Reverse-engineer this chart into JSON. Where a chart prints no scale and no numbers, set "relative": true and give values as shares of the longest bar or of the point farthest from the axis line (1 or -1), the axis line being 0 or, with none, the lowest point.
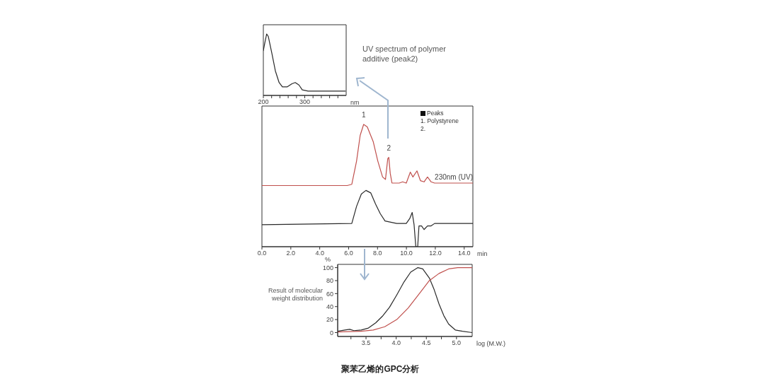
{
  "chart_data": [
    {
      "type": "line",
      "relative": true,
      "xlabel": "nm",
      "xlim": [
        200,
        400
      ],
      "xticks": [
        200,
        {
          "value": 220,
          "label": null
        },
        {
          "value": 240,
          "label": null
        },
        {
          "value": 260,
          "label": null
        },
        {
          "value": 280,
          "label": null
        },
        300,
        {
          "value": 320,
          "label": null
        },
        {
          "value": 340,
          "label": null
        },
        {
          "value": 360,
          "label": null
        },
        {
          "value": 380,
          "label": null
        }
      ],
      "marker": "none",
      "line_style": "solid",
      "annotations": [
        "UV spectrum of polymer additive (peak2)"
      ],
      "series": [
        {
          "color": "#2a2a2a",
          "x": [
            200,
            204,
            208,
            212,
            221,
            229,
            238,
            246,
            258,
            269,
            277,
            286,
            294,
            308,
            398
          ],
          "values": [
            0.73,
            0.87,
            1,
            0.96,
            0.67,
            0.4,
            0.21,
            0.14,
            0.14,
            0.19,
            0.21,
            0.17,
            0.09,
            0.07,
            0.07
          ]
        }
      ]
    },
    {
      "type": "line",
      "relative": true,
      "title": "聚苯乙烯的GPC分析",
      "xlabel": "min",
      "xlim": [
        0,
        14.6
      ],
      "xticks": [
        {
          "value": 0,
          "label": "0.0"
        },
        {
          "value": 2,
          "label": "2.0"
        },
        {
          "value": 4,
          "label": "4.0"
        },
        {
          "value": 6,
          "label": "6.0"
        },
        {
          "value": 8,
          "label": "8.0"
        },
        {
          "value": 10,
          "label": "10.0"
        },
        {
          "value": 12,
          "label": "12.0"
        },
        {
          "value": 14,
          "label": "14.0"
        }
      ],
      "marker": "none",
      "line_style": "solid",
      "annotations": [
        "Peaks",
        "1. Polystyrene",
        "2.",
        {
          "text": "1",
          "x": 7.04,
          "y": 1
        },
        {
          "text": "2",
          "x": 8.78,
          "y": 0.73
        }
      ],
      "series": [
        {
          "name": "230nm (UV)",
          "color": "#c0504d",
          "x": [
            0,
            5.9,
            6.22,
            6.55,
            6.8,
            7.04,
            7.29,
            7.7,
            8.02,
            8.35,
            8.55,
            8.71,
            8.78,
            8.88,
            9.0,
            9.5,
            9.74,
            9.99,
            10.27,
            10.45,
            10.73,
            10.97,
            11.22,
            11.46,
            11.71,
            11.95,
            14.6
          ],
          "values": [
            0.5,
            0.5,
            0.51,
            0.7,
            0.91,
            1,
            0.98,
            0.86,
            0.7,
            0.57,
            0.55,
            0.72,
            0.73,
            0.6,
            0.52,
            0.52,
            0.53,
            0.52,
            0.61,
            0.57,
            0.62,
            0.54,
            0.53,
            0.57,
            0.53,
            0.52,
            0.52
          ]
        },
        {
          "color": "#2a2a2a",
          "x": [
            0,
            6.22,
            6.55,
            6.88,
            7.2,
            7.53,
            7.86,
            8.19,
            8.52,
            8.92,
            9.33,
            9.99,
            10.23,
            10.4,
            10.53,
            10.65,
            10.78,
            10.87,
            11.05,
            11.22,
            11.46,
            11.71,
            11.95,
            14.6
          ],
          "values": [
            0.18,
            0.19,
            0.33,
            0.43,
            0.46,
            0.44,
            0.35,
            0.27,
            0.21,
            0.2,
            0.19,
            0.19,
            0.23,
            0.28,
            0.18,
            0,
            0,
            0.17,
            0.17,
            0.14,
            0.17,
            0.17,
            0.19,
            0.19
          ]
        }
      ]
    },
    {
      "type": "line",
      "xlabel": "log (M.W.)",
      "ylabel": "%",
      "xlim": [
        3.03,
        5.26
      ],
      "ylim": [
        -6,
        105
      ],
      "xticks": [
        {
          "value": 3.25,
          "label": null
        },
        3.5,
        {
          "value": 3.75,
          "label": null
        },
        {
          "value": 4,
          "label": "4.0"
        },
        {
          "value": 4.25,
          "label": null
        },
        4.5,
        {
          "value": 4.75,
          "label": null
        },
        {
          "value": 5,
          "label": "5.0"
        }
      ],
      "yticks": [
        0,
        20,
        40,
        60,
        80,
        100
      ],
      "marker": "none",
      "line_style": "solid",
      "annotations": [
        "Result of molecular weight distribution"
      ],
      "series": [
        {
          "color": "#2a2a2a",
          "x": [
            3.03,
            3.15,
            3.23,
            3.3,
            3.42,
            3.54,
            3.66,
            3.77,
            3.89,
            4.01,
            4.13,
            4.24,
            4.36,
            4.44,
            4.55,
            4.63,
            4.71,
            4.79,
            4.87,
            4.98,
            5.1,
            5.26
          ],
          "values": [
            2,
            4,
            5,
            3,
            4,
            7,
            15,
            25,
            39,
            58,
            78,
            93,
            100,
            98,
            84,
            66,
            44,
            26,
            13,
            4,
            2,
            0
          ]
        },
        {
          "color": "#c0504d",
          "x": [
            3.03,
            3.42,
            3.62,
            3.81,
            4.01,
            4.2,
            4.4,
            4.55,
            4.71,
            4.87,
            5.02,
            5.26
          ],
          "values": [
            1,
            2,
            4,
            9,
            20,
            38,
            62,
            80,
            91,
            98,
            100,
            100
          ]
        }
      ]
    }
  ]
}
